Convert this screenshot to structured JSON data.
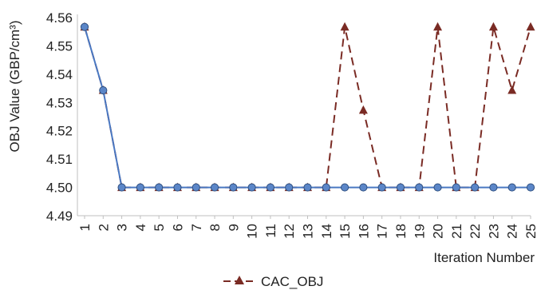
{
  "chart_data": {
    "type": "line",
    "title": "",
    "xlabel": "Iteration Number",
    "ylabel": "OBJ Value (GBP/cm³)",
    "ylim": [
      4.49,
      4.56
    ],
    "yticks": [
      "4.49",
      "4.50",
      "4.51",
      "4.52",
      "4.53",
      "4.54",
      "4.55",
      "4.56"
    ],
    "x": [
      1,
      2,
      3,
      4,
      5,
      6,
      7,
      8,
      9,
      10,
      11,
      12,
      13,
      14,
      15,
      16,
      17,
      18,
      19,
      20,
      21,
      22,
      23,
      24,
      25
    ],
    "grid": false,
    "legend_position": "bottom",
    "series": [
      {
        "name": "CAC_OBJ",
        "style": "dashed",
        "marker": "triangle",
        "color": "#7a2b24",
        "values": [
          4.5567,
          4.5343,
          4.5,
          4.5,
          4.5,
          4.5,
          4.5,
          4.5,
          4.5,
          4.5,
          4.5,
          4.5,
          4.5,
          4.5,
          4.5567,
          4.5273,
          4.5,
          4.5,
          4.5,
          4.5567,
          4.5,
          4.5,
          4.5567,
          4.5343,
          4.5567
        ]
      },
      {
        "style": "solid",
        "marker": "circle",
        "color": "#4a78c2",
        "values": [
          4.5567,
          4.5343,
          4.5,
          4.5,
          4.5,
          4.5,
          4.5,
          4.5,
          4.5,
          4.5,
          4.5,
          4.5,
          4.5,
          4.5,
          4.5,
          4.5,
          4.5,
          4.5,
          4.5,
          4.5,
          4.5,
          4.5,
          4.5,
          4.5,
          4.5
        ]
      }
    ]
  }
}
